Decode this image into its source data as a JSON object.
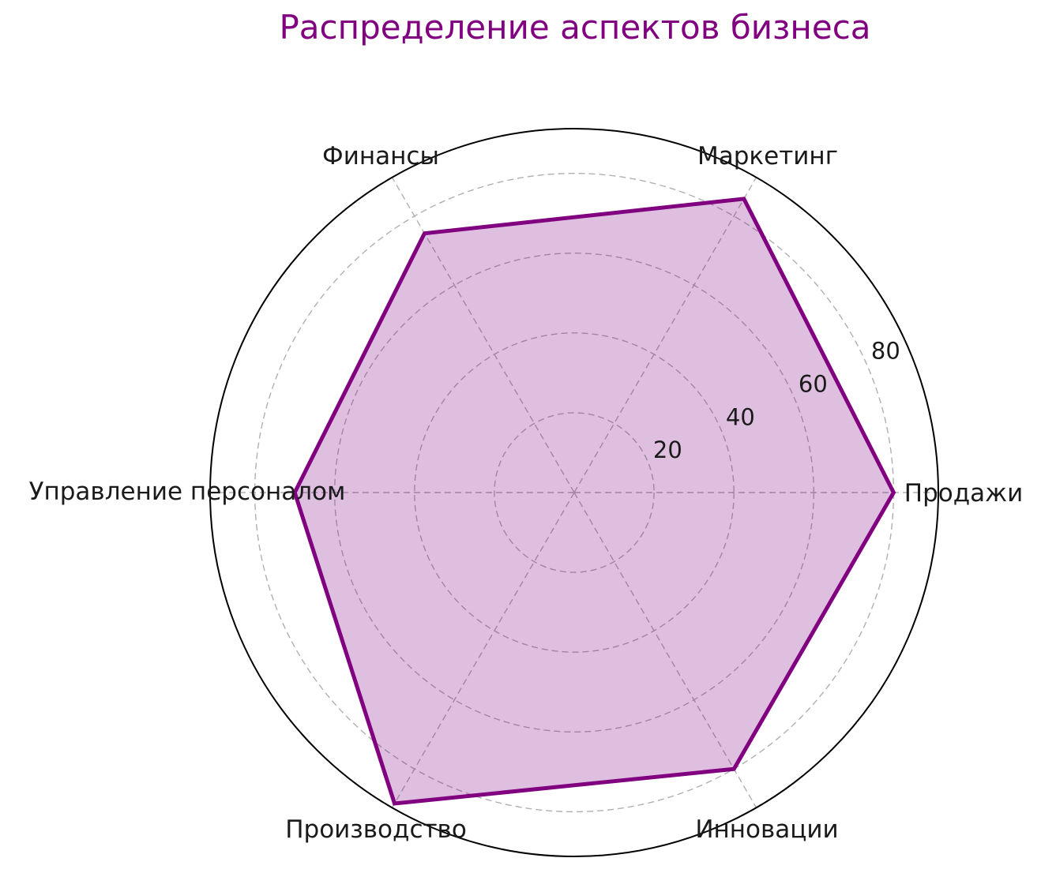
{
  "title": {
    "text": "Распределение аспектов бизнеса",
    "color": "#800080"
  },
  "chart_data": {
    "type": "radar",
    "categories": [
      "Продажи",
      "Маркетинг",
      "Финансы",
      "Управление персоналом",
      "Производство",
      "Инновации"
    ],
    "values": [
      80,
      85,
      75,
      70,
      90,
      80
    ],
    "radial_ticks": [
      20,
      40,
      60,
      80
    ],
    "r_max": 91.2,
    "angle_start_deg": 0,
    "direction": "counterclockwise",
    "grid": true,
    "tick_label_angle_deg": 24.5,
    "colors": {
      "line": "#800080",
      "fill": "rgba(128,0,128,0.25)",
      "grid": "#b0b0b0",
      "outer_ring": "#000000",
      "text": "#1a1a1a",
      "background": "#ffffff"
    }
  }
}
